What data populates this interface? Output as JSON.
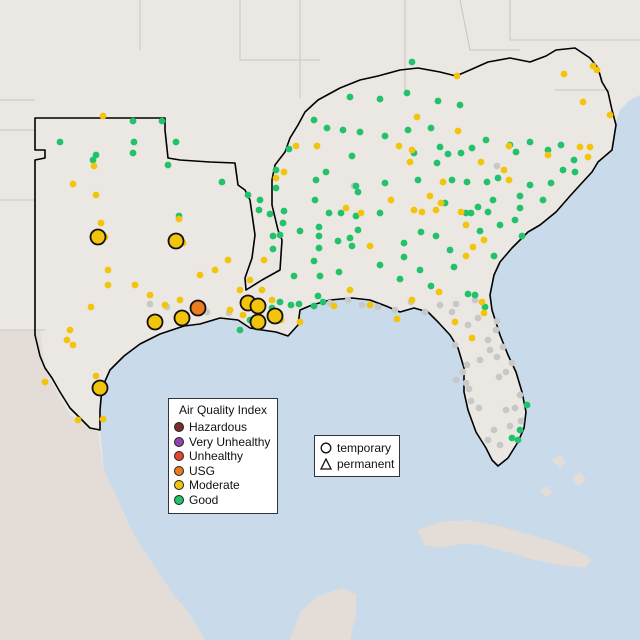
{
  "map": {
    "colors": {
      "ocean": "#c9daea",
      "land": "#ebe8e4",
      "land_south": "#e4ddd7",
      "boundary": "#000000",
      "state_border": "#c9c6c2"
    },
    "legend": {
      "title": "Air Quality Index",
      "items": [
        {
          "label": "Hazardous",
          "color": "#7e2c2a"
        },
        {
          "label": "Very Unhealthy",
          "color": "#8e44ad"
        },
        {
          "label": "Unhealthy",
          "color": "#e2462c"
        },
        {
          "label": "USG",
          "color": "#ea7d1d"
        },
        {
          "label": "Moderate",
          "color": "#f2c40c"
        },
        {
          "label": "Good",
          "color": "#22c26b"
        }
      ]
    },
    "type_legend": {
      "items": [
        {
          "label": "temporary",
          "shape": "circle-outline-icon"
        },
        {
          "label": "permanent",
          "shape": "triangle-outline-icon"
        }
      ]
    },
    "monitor_counts": {
      "good": 118,
      "moderate": 79,
      "moderate_large": 12,
      "usg": 1,
      "no_data": 45
    },
    "no_data_color": "#c8c8c8"
  }
}
